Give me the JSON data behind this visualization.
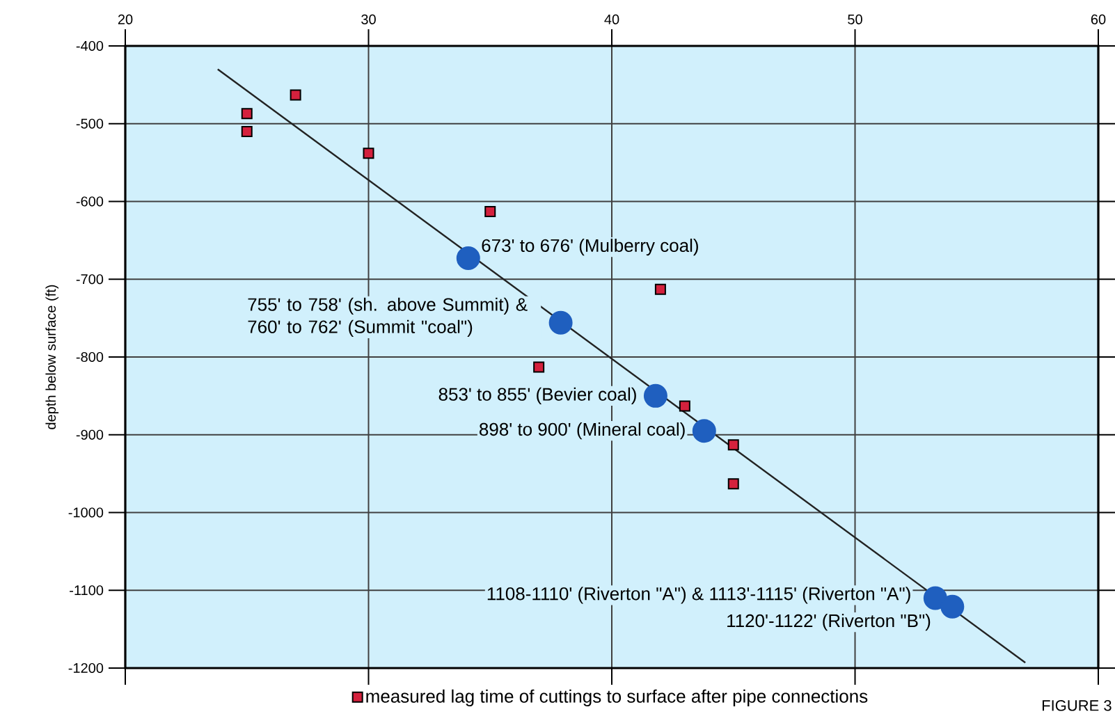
{
  "chart_data": {
    "type": "scatter",
    "ylabel": "depth below surface (ft)",
    "xlim": [
      20,
      60
    ],
    "ylim": [
      -1200,
      -400
    ],
    "xticks": [
      20,
      30,
      40,
      50,
      60
    ],
    "yticks": [
      -1200,
      -1100,
      -1000,
      -900,
      -800,
      -700,
      -600,
      -500,
      -400
    ],
    "grid": true,
    "legend": "bottom",
    "series": [
      {
        "name": "measured lag time of cuttings to surface after pipe connections",
        "color": "#d4213d",
        "marker": "square",
        "x": [
          25,
          25,
          27,
          30,
          35,
          42,
          37,
          43,
          45,
          45
        ],
        "values": [
          -487,
          -510,
          -463,
          -538,
          -613,
          -713,
          -813,
          -863,
          -913,
          -963
        ]
      },
      {
        "color": "#1f5fbf",
        "marker": "circle",
        "x": [
          34.1,
          37.9,
          41.8,
          43.8,
          53.3,
          54
        ],
        "values": [
          -673,
          -756,
          -850,
          -895,
          -1110,
          -1121
        ]
      },
      {
        "type": "line",
        "color": "#222222",
        "marker": "none",
        "x": [
          23.8,
          57
        ],
        "values": [
          -430,
          -1193
        ]
      }
    ],
    "annotations": [
      {
        "text": "673' to 676' (Mulberry coal)",
        "x": 34.1,
        "y": -673
      },
      {
        "text": "755' to 758' (sh. above Summit) & 760' to 762' (Summit \"coal\")",
        "x": 37.9,
        "y": -756
      },
      {
        "text": "853' to 855' (Bevier coal)",
        "x": 41.8,
        "y": -850
      },
      {
        "text": "898' to 900' (Mineral coal)",
        "x": 43.8,
        "y": -895
      },
      {
        "text": "1108-1110' (Riverton \"A\") & 1113'-1115' (Riverton \"A\")",
        "x": 53.3,
        "y": -1110
      },
      {
        "text": "1120'-1122' (Riverton \"B\")",
        "x": 54,
        "y": -1121
      },
      "FIGURE 3"
    ]
  }
}
